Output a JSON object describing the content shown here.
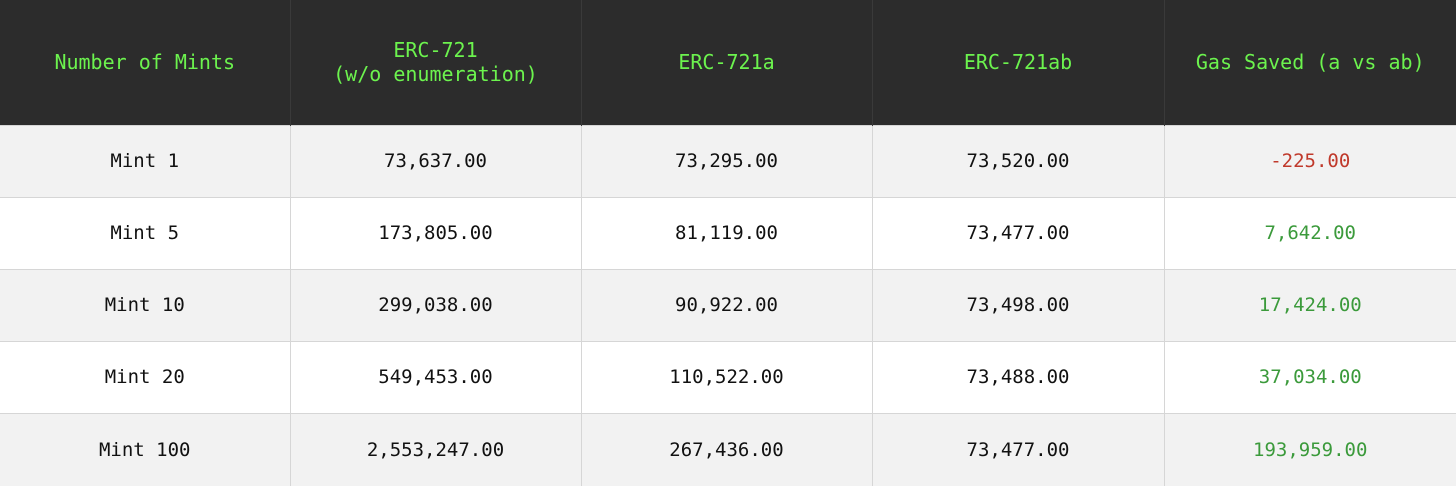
{
  "chart_data": {
    "type": "table",
    "columns": [
      "Number of Mints",
      "ERC-721\n(w/o enumeration)",
      "ERC-721a",
      "ERC-721ab",
      "Gas Saved (a vs ab)"
    ],
    "rows": [
      {
        "label": "Mint 1",
        "erc721": "73,637.00",
        "erc721a": "73,295.00",
        "erc721ab": "73,520.00",
        "saved": "-225.00",
        "saved_value": -225
      },
      {
        "label": "Mint 5",
        "erc721": "173,805.00",
        "erc721a": "81,119.00",
        "erc721ab": "73,477.00",
        "saved": "7,642.00",
        "saved_value": 7642
      },
      {
        "label": "Mint 10",
        "erc721": "299,038.00",
        "erc721a": "90,922.00",
        "erc721ab": "73,498.00",
        "saved": "17,424.00",
        "saved_value": 17424
      },
      {
        "label": "Mint 20",
        "erc721": "549,453.00",
        "erc721a": "110,522.00",
        "erc721ab": "73,488.00",
        "saved": "37,034.00",
        "saved_value": 37034
      },
      {
        "label": "Mint 100",
        "erc721": "2,553,247.00",
        "erc721a": "267,436.00",
        "erc721ab": "73,477.00",
        "saved": "193,959.00",
        "saved_value": 193959
      }
    ],
    "colors": {
      "header_bg": "#2c2c2c",
      "header_text": "#6cf34e",
      "negative": "#c0392b",
      "positive": "#3b9a3b"
    }
  }
}
